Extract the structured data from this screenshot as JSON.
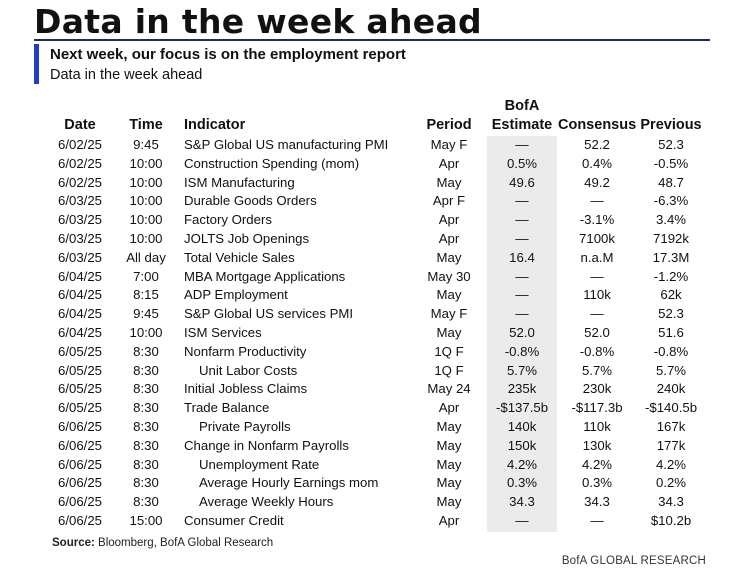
{
  "header": {
    "title": "Data in the week ahead",
    "subtitle": "Next week, our focus is on the employment report",
    "subsubtitle": "Data in the week ahead"
  },
  "columns": {
    "date": "Date",
    "time": "Time",
    "indicator": "Indicator",
    "period": "Period",
    "estimate_line1": "BofA",
    "estimate_line2": "Estimate",
    "consensus": "Consensus",
    "previous": "Previous"
  },
  "rows": [
    {
      "date": "6/02/25",
      "time": "9:45",
      "indicator": "S&P Global US manufacturing PMI",
      "indent": false,
      "period": "May F",
      "estimate": "—",
      "consensus": "52.2",
      "previous": "52.3"
    },
    {
      "date": "6/02/25",
      "time": "10:00",
      "indicator": "Construction Spending (mom)",
      "indent": false,
      "period": "Apr",
      "estimate": "0.5%",
      "consensus": "0.4%",
      "previous": "-0.5%"
    },
    {
      "date": "6/02/25",
      "time": "10:00",
      "indicator": "ISM Manufacturing",
      "indent": false,
      "period": "May",
      "estimate": "49.6",
      "consensus": "49.2",
      "previous": "48.7"
    },
    {
      "date": "6/03/25",
      "time": "10:00",
      "indicator": "Durable Goods Orders",
      "indent": false,
      "period": "Apr F",
      "estimate": "—",
      "consensus": "—",
      "previous": "-6.3%"
    },
    {
      "date": "6/03/25",
      "time": "10:00",
      "indicator": "Factory Orders",
      "indent": false,
      "period": "Apr",
      "estimate": "—",
      "consensus": "-3.1%",
      "previous": "3.4%"
    },
    {
      "date": "6/03/25",
      "time": "10:00",
      "indicator": "JOLTS Job Openings",
      "indent": false,
      "period": "Apr",
      "estimate": "—",
      "consensus": "7100k",
      "previous": "7192k"
    },
    {
      "date": "6/03/25",
      "time": "All day",
      "indicator": "Total Vehicle Sales",
      "indent": false,
      "period": "May",
      "estimate": "16.4",
      "consensus": "n.a.M",
      "previous": "17.3M"
    },
    {
      "date": "6/04/25",
      "time": "7:00",
      "indicator": "MBA Mortgage Applications",
      "indent": false,
      "period": "May 30",
      "estimate": "—",
      "consensus": "—",
      "previous": "-1.2%"
    },
    {
      "date": "6/04/25",
      "time": "8:15",
      "indicator": "ADP Employment",
      "indent": false,
      "period": "May",
      "estimate": "—",
      "consensus": "110k",
      "previous": "62k"
    },
    {
      "date": "6/04/25",
      "time": "9:45",
      "indicator": "S&P Global US services PMI",
      "indent": false,
      "period": "May F",
      "estimate": "—",
      "consensus": "—",
      "previous": "52.3"
    },
    {
      "date": "6/04/25",
      "time": "10:00",
      "indicator": "ISM Services",
      "indent": false,
      "period": "May",
      "estimate": "52.0",
      "consensus": "52.0",
      "previous": "51.6"
    },
    {
      "date": "6/05/25",
      "time": "8:30",
      "indicator": "Nonfarm Productivity",
      "indent": false,
      "period": "1Q F",
      "estimate": "-0.8%",
      "consensus": "-0.8%",
      "previous": "-0.8%"
    },
    {
      "date": "6/05/25",
      "time": "8:30",
      "indicator": "Unit Labor Costs",
      "indent": true,
      "period": "1Q F",
      "estimate": "5.7%",
      "consensus": "5.7%",
      "previous": "5.7%"
    },
    {
      "date": "6/05/25",
      "time": "8:30",
      "indicator": "Initial Jobless Claims",
      "indent": false,
      "period": "May 24",
      "estimate": "235k",
      "consensus": "230k",
      "previous": "240k"
    },
    {
      "date": "6/05/25",
      "time": "8:30",
      "indicator": "Trade Balance",
      "indent": false,
      "period": "Apr",
      "estimate": "-$137.5b",
      "consensus": "-$117.3b",
      "previous": "-$140.5b"
    },
    {
      "date": "6/06/25",
      "time": "8:30",
      "indicator": "Private Payrolls",
      "indent": true,
      "period": "May",
      "estimate": "140k",
      "consensus": "110k",
      "previous": "167k"
    },
    {
      "date": "6/06/25",
      "time": "8:30",
      "indicator": "Change in Nonfarm Payrolls",
      "indent": false,
      "period": "May",
      "estimate": "150k",
      "consensus": "130k",
      "previous": "177k"
    },
    {
      "date": "6/06/25",
      "time": "8:30",
      "indicator": "Unemployment Rate",
      "indent": true,
      "period": "May",
      "estimate": "4.2%",
      "consensus": "4.2%",
      "previous": "4.2%"
    },
    {
      "date": "6/06/25",
      "time": "8:30",
      "indicator": "Average Hourly Earnings mom",
      "indent": true,
      "period": "May",
      "estimate": "0.3%",
      "consensus": "0.3%",
      "previous": "0.2%"
    },
    {
      "date": "6/06/25",
      "time": "8:30",
      "indicator": "Average Weekly Hours",
      "indent": true,
      "period": "May",
      "estimate": "34.3",
      "consensus": "34.3",
      "previous": "34.3"
    },
    {
      "date": "6/06/25",
      "time": "15:00",
      "indicator": "Consumer Credit",
      "indent": false,
      "period": "Apr",
      "estimate": "—",
      "consensus": "—",
      "previous": "$10.2b"
    }
  ],
  "footer": {
    "source_label": "Source:",
    "source_text": "Bloomberg, BofA Global Research",
    "brand": "BofA GLOBAL RESEARCH"
  },
  "colors": {
    "accent": "#1f3fc6",
    "rule": "#1f2d5c",
    "estimate_shade": "#ebebeb"
  }
}
